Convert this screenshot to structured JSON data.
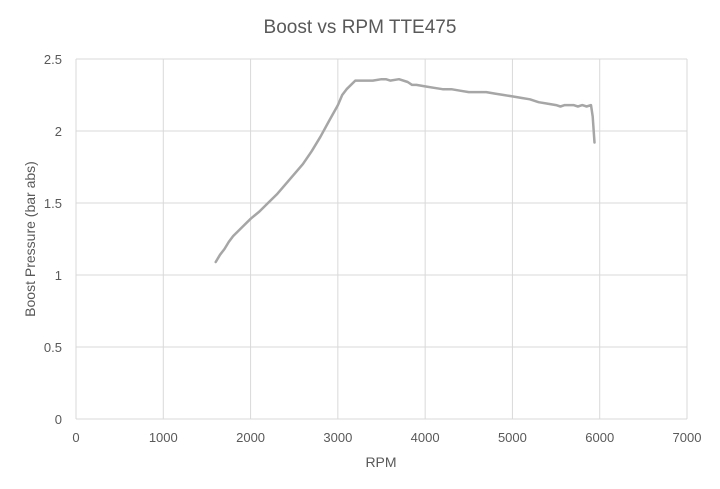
{
  "chart_data": {
    "type": "line",
    "title": "Boost vs RPM TTE475",
    "xlabel": "RPM",
    "ylabel": "Boost Pressure (bar abs)",
    "xlim": [
      0,
      7000
    ],
    "ylim": [
      0,
      2.5
    ],
    "xticks": [
      0,
      1000,
      2000,
      3000,
      4000,
      5000,
      6000,
      7000
    ],
    "yticks": [
      0,
      0.5,
      1,
      1.5,
      2,
      2.5
    ],
    "xtick_labels": [
      "0",
      "1000",
      "2000",
      "3000",
      "4000",
      "5000",
      "6000",
      "7000"
    ],
    "ytick_labels": [
      "0",
      "0.5",
      "1",
      "1.5",
      "2",
      "2.5"
    ],
    "grid": true,
    "legend": "none",
    "colors": {
      "line": "#a6a6a6",
      "grid": "#d9d9d9",
      "text": "#595959"
    },
    "series": [
      {
        "x": [
          1600,
          1650,
          1700,
          1750,
          1800,
          1900,
          2000,
          2100,
          2200,
          2300,
          2400,
          2500,
          2600,
          2700,
          2800,
          2900,
          3000,
          3050,
          3100,
          3200,
          3300,
          3400,
          3500,
          3550,
          3600,
          3700,
          3800,
          3850,
          3900,
          4000,
          4100,
          4200,
          4300,
          4400,
          4500,
          4600,
          4700,
          4800,
          4900,
          5000,
          5100,
          5200,
          5300,
          5400,
          5500,
          5550,
          5600,
          5700,
          5750,
          5800,
          5850,
          5900,
          5920,
          5940
        ],
        "y": [
          1.09,
          1.14,
          1.18,
          1.23,
          1.27,
          1.33,
          1.39,
          1.44,
          1.5,
          1.56,
          1.63,
          1.7,
          1.77,
          1.86,
          1.96,
          2.07,
          2.18,
          2.25,
          2.29,
          2.35,
          2.35,
          2.35,
          2.36,
          2.36,
          2.35,
          2.36,
          2.34,
          2.32,
          2.32,
          2.31,
          2.3,
          2.29,
          2.29,
          2.28,
          2.27,
          2.27,
          2.27,
          2.26,
          2.25,
          2.24,
          2.23,
          2.22,
          2.2,
          2.19,
          2.18,
          2.17,
          2.18,
          2.18,
          2.17,
          2.18,
          2.17,
          2.18,
          2.1,
          1.92
        ]
      }
    ]
  }
}
